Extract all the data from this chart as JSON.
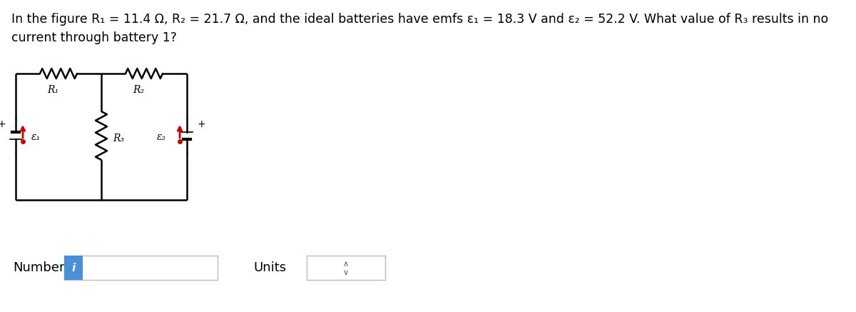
{
  "title_line1": "In the figure R₁ = 11.4 Ω, R₂ = 21.7 Ω, and the ideal batteries have emfs ε₁ = 18.3 V and ε₂ = 52.2 V. What value of R₃ results in no",
  "title_line2": "current through battery 1?",
  "background_color": "#ffffff",
  "circuit_line_color": "#000000",
  "battery_red_color": "#cc0000",
  "label_R1": "R₁",
  "label_R2": "R₂",
  "label_R3": "R₃",
  "label_E1": "ε₁",
  "label_E2": "ε₂",
  "number_label": "Number",
  "units_label": "Units",
  "input_box_color": "#4a90d9",
  "title_fontsize": 12.5,
  "label_fontsize": 10
}
